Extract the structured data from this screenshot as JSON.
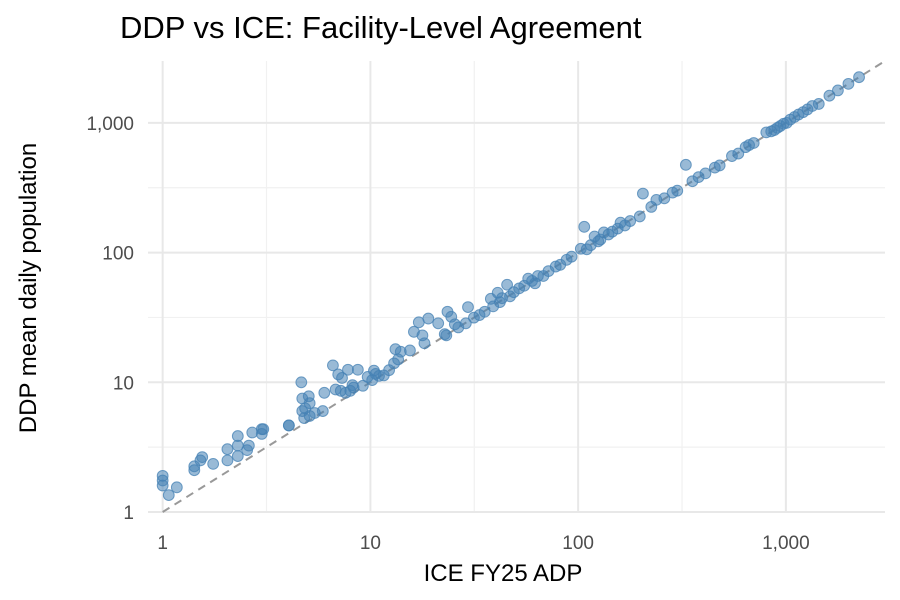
{
  "chart_data": {
    "type": "scatter",
    "title": "DDP vs ICE: Facility-Level Agreement",
    "xlabel": "ICE FY25 ADP",
    "ylabel": "DDP mean daily population",
    "x_scale": "log10",
    "y_scale": "log10",
    "xlim": [
      0.85,
      3000
    ],
    "ylim": [
      1,
      3000
    ],
    "x_ticks": [
      1,
      10,
      100,
      1000
    ],
    "x_tick_labels": [
      "1",
      "10",
      "100",
      "1,000"
    ],
    "y_ticks": [
      1,
      10,
      100,
      1000
    ],
    "y_tick_labels": [
      "1",
      "10",
      "100",
      "1,000"
    ],
    "grid": true,
    "reference_line": "y = x (dashed gray)",
    "point_color": "#4682b4",
    "reference_color": "#999999",
    "series": [
      {
        "points": [
          [
            1.0,
            1.9
          ],
          [
            1.0,
            1.75
          ],
          [
            1.0,
            1.6
          ],
          [
            1.07,
            1.35
          ],
          [
            1.17,
            1.55
          ],
          [
            1.42,
            2.1
          ],
          [
            1.42,
            2.25
          ],
          [
            1.52,
            2.5
          ],
          [
            1.55,
            2.65
          ],
          [
            1.75,
            2.35
          ],
          [
            2.05,
            2.5
          ],
          [
            2.05,
            3.05
          ],
          [
            2.3,
            2.7
          ],
          [
            2.3,
            3.25
          ],
          [
            2.3,
            3.85
          ],
          [
            2.55,
            3.0
          ],
          [
            2.6,
            3.25
          ],
          [
            2.7,
            4.1
          ],
          [
            3.0,
            4.0
          ],
          [
            3.0,
            4.35
          ],
          [
            3.05,
            4.35
          ],
          [
            4.05,
            4.65
          ],
          [
            4.05,
            4.65
          ],
          [
            4.65,
            10.0
          ],
          [
            4.7,
            6.0
          ],
          [
            4.7,
            7.5
          ],
          [
            4.8,
            5.3
          ],
          [
            4.85,
            6.3
          ],
          [
            5.05,
            7.8
          ],
          [
            5.1,
            6.9
          ],
          [
            5.1,
            5.5
          ],
          [
            5.4,
            5.8
          ],
          [
            5.9,
            6.0
          ],
          [
            6.0,
            8.3
          ],
          [
            6.6,
            13.5
          ],
          [
            6.8,
            8.8
          ],
          [
            7.0,
            11.5
          ],
          [
            7.2,
            8.6
          ],
          [
            7.3,
            10.8
          ],
          [
            7.6,
            8.3
          ],
          [
            7.8,
            12.5
          ],
          [
            8.0,
            8.6
          ],
          [
            8.2,
            9.5
          ],
          [
            8.3,
            9.1
          ],
          [
            8.7,
            12.5
          ],
          [
            9.2,
            9.4
          ],
          [
            9.7,
            11.0
          ],
          [
            10.2,
            10.4
          ],
          [
            10.4,
            12.3
          ],
          [
            10.6,
            11.6
          ],
          [
            11.0,
            11.2
          ],
          [
            11.6,
            11.3
          ],
          [
            12.3,
            12.4
          ],
          [
            13.0,
            14.0
          ],
          [
            13.2,
            18.0
          ],
          [
            13.6,
            15.0
          ],
          [
            14.0,
            17.2
          ],
          [
            15.5,
            17.6
          ],
          [
            16.2,
            24.5
          ],
          [
            17.1,
            29.0
          ],
          [
            17.8,
            23.0
          ],
          [
            18.2,
            20.0
          ],
          [
            19.0,
            31.0
          ],
          [
            21.2,
            28.5
          ],
          [
            22.8,
            23.5
          ],
          [
            23.2,
            23.0
          ],
          [
            23.5,
            35.0
          ],
          [
            24.5,
            32.0
          ],
          [
            25.5,
            28.0
          ],
          [
            26.5,
            26.5
          ],
          [
            28.8,
            28.5
          ],
          [
            29.5,
            38.0
          ],
          [
            31.5,
            31.5
          ],
          [
            33.5,
            33.0
          ],
          [
            35.5,
            35.0
          ],
          [
            38.0,
            44.0
          ],
          [
            39.0,
            38.5
          ],
          [
            41.0,
            49.0
          ],
          [
            42.0,
            41.5
          ],
          [
            43.0,
            44.5
          ],
          [
            45.5,
            56.5
          ],
          [
            47.0,
            46.0
          ],
          [
            49.0,
            49.5
          ],
          [
            52.0,
            53.0
          ],
          [
            55.0,
            55.5
          ],
          [
            57.5,
            63.0
          ],
          [
            60.0,
            60.5
          ],
          [
            62.0,
            58.0
          ],
          [
            64.0,
            66.0
          ],
          [
            68.0,
            66.0
          ],
          [
            72.0,
            72.0
          ],
          [
            78.0,
            78.0
          ],
          [
            82.0,
            80.5
          ],
          [
            88.0,
            88.0
          ],
          [
            93.0,
            93.0
          ],
          [
            103.0,
            107.0
          ],
          [
            107.0,
            158.0
          ],
          [
            110.0,
            106.0
          ],
          [
            115.0,
            114.0
          ],
          [
            120.0,
            133.0
          ],
          [
            125.0,
            122.0
          ],
          [
            128.0,
            126.0
          ],
          [
            133.0,
            143.0
          ],
          [
            140.0,
            138.0
          ],
          [
            146.0,
            145.0
          ],
          [
            155.0,
            153.0
          ],
          [
            160.0,
            170.0
          ],
          [
            168.0,
            162.0
          ],
          [
            178.0,
            175.0
          ],
          [
            198.0,
            190.0
          ],
          [
            205.0,
            285.0
          ],
          [
            225.0,
            225.0
          ],
          [
            238.0,
            255.0
          ],
          [
            260.0,
            262.0
          ],
          [
            285.0,
            290.0
          ],
          [
            300.0,
            300.0
          ],
          [
            330.0,
            475.0
          ],
          [
            355.0,
            355.0
          ],
          [
            380.0,
            382.0
          ],
          [
            410.0,
            408.0
          ],
          [
            455.0,
            452.0
          ],
          [
            480.0,
            470.0
          ],
          [
            550.0,
            555.0
          ],
          [
            590.0,
            580.0
          ],
          [
            640.0,
            650.0
          ],
          [
            665.0,
            675.0
          ],
          [
            700.0,
            700.0
          ],
          [
            805.0,
            845.0
          ],
          [
            850.0,
            860.0
          ],
          [
            880.0,
            880.0
          ],
          [
            910.0,
            915.0
          ],
          [
            940.0,
            945.0
          ],
          [
            975.0,
            985.0
          ],
          [
            1010.0,
            1000.0
          ],
          [
            1050.0,
            1060.0
          ],
          [
            1100.0,
            1110.0
          ],
          [
            1150.0,
            1160.0
          ],
          [
            1210.0,
            1210.0
          ],
          [
            1270.0,
            1270.0
          ],
          [
            1340.0,
            1350.0
          ],
          [
            1440.0,
            1400.0
          ],
          [
            1620.0,
            1620.0
          ],
          [
            1780.0,
            1780.0
          ],
          [
            2000.0,
            2000.0
          ],
          [
            2250.0,
            2250.0
          ]
        ]
      }
    ]
  }
}
